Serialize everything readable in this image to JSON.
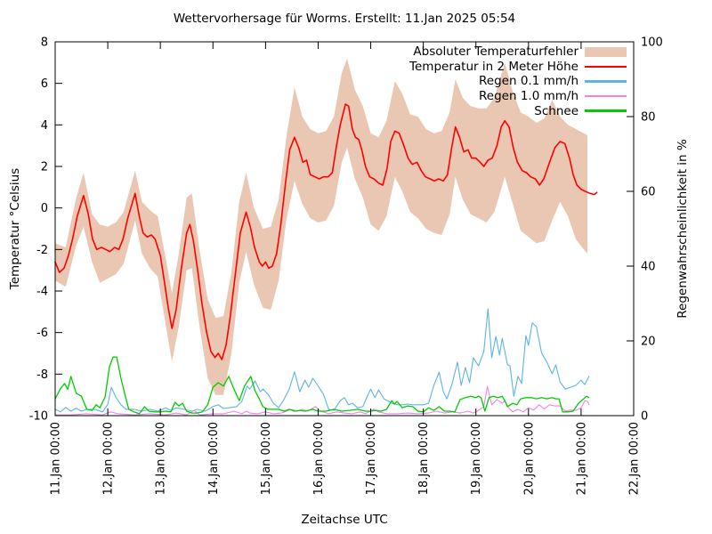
{
  "title": "Wettervorhersage für Worms. Erstellt: 11.Jan 2025 05:54",
  "axes": {
    "x_label": "Zeitachse UTC",
    "y_left_label": "Temperatur °Celsius",
    "y_right_label": "Regenwahrscheinlichkeit in %",
    "x_tick_labels": [
      "11.Jan 00:00",
      "12.Jan 00:00",
      "13.Jan 00:00",
      "14.Jan 00:00",
      "15.Jan 00:00",
      "16.Jan 00:00",
      "17.Jan 00:00",
      "18.Jan 00:00",
      "19.Jan 00:00",
      "20.Jan 00:00",
      "21.Jan 00:00",
      "22.Jan 00:00"
    ],
    "y_left_ticks": [
      -10,
      -8,
      -6,
      -4,
      -2,
      0,
      2,
      4,
      6,
      8
    ],
    "y_right_ticks": [
      0,
      20,
      40,
      60,
      80,
      100
    ]
  },
  "legend": {
    "items": [
      {
        "label": "Absoluter Temperaturfehler",
        "swatch": "band",
        "color": "#eac7b2"
      },
      {
        "label": "Temperatur in 2 Meter Höhe",
        "swatch": "line",
        "color": "#ff0000"
      },
      {
        "label": "Regen 0.1 mm/h",
        "swatch": "line",
        "color": "#5eb3e8"
      },
      {
        "label": "Regen 1.0 mm/h",
        "swatch": "line",
        "color": "#ee82ee"
      },
      {
        "label": "Schnee",
        "swatch": "line",
        "color": "#00cc00"
      }
    ]
  },
  "chart_data": {
    "type": "line",
    "title": "Wettervorhersage für Worms. Erstellt: 11.Jan 2025 05:54",
    "xlabel": "Zeitachse UTC",
    "x_unit": "days since 11.Jan 2025 00:00 UTC",
    "x_range": [
      0,
      11
    ],
    "y_left": {
      "label": "Temperatur °Celsius",
      "range": [
        -10,
        8
      ]
    },
    "y_right": {
      "label": "Regenwahrscheinlichkeit in %",
      "range": [
        0,
        100
      ]
    },
    "grid": false,
    "legend_position": "top-right",
    "series": [
      {
        "name": "Absoluter Temperaturfehler",
        "type": "band",
        "axis": "left",
        "color": "#eac7b2",
        "x": [
          0,
          0.2,
          0.4,
          0.54,
          0.7,
          0.85,
          1.0,
          1.15,
          1.3,
          1.52,
          1.65,
          1.8,
          1.95,
          2.1,
          2.22,
          2.35,
          2.5,
          2.6,
          2.75,
          2.9,
          3.05,
          3.2,
          3.35,
          3.5,
          3.63,
          3.78,
          3.95,
          4.1,
          4.25,
          4.4,
          4.55,
          4.7,
          4.85,
          5.0,
          5.15,
          5.3,
          5.45,
          5.55,
          5.7,
          5.85,
          6.0,
          6.15,
          6.3,
          6.46,
          6.6,
          6.75,
          6.9,
          7.05,
          7.2,
          7.35,
          7.5,
          7.61,
          7.75,
          7.9,
          8.05,
          8.2,
          8.35,
          8.55,
          8.7,
          8.85,
          9.0,
          9.15,
          9.3,
          9.45,
          9.6,
          9.75,
          9.9,
          10.05,
          10.12
        ],
        "top": [
          -1.7,
          -1.9,
          0.5,
          1.7,
          -0.3,
          -0.8,
          -0.9,
          -0.7,
          -0.2,
          1.8,
          0.3,
          -0.1,
          -0.4,
          -2.4,
          -4.1,
          -2.2,
          0.5,
          0.7,
          -2.1,
          -4.4,
          -5.3,
          -5.2,
          -3.1,
          0.3,
          1.7,
          0.0,
          -1.0,
          -0.9,
          0.4,
          3.5,
          5.8,
          4.4,
          3.8,
          3.6,
          3.7,
          4.4,
          6.5,
          7.2,
          5.7,
          4.9,
          3.6,
          3.4,
          4.2,
          6.1,
          5.5,
          4.5,
          4.4,
          3.8,
          3.6,
          3.7,
          4.6,
          6.2,
          5.3,
          4.9,
          4.8,
          4.8,
          5.3,
          7.0,
          5.6,
          4.6,
          4.4,
          4.1,
          4.3,
          5.2,
          4.4,
          4.0,
          3.8,
          3.6,
          3.5
        ],
        "bot": [
          -3.5,
          -3.8,
          -1.8,
          -0.9,
          -2.6,
          -3.6,
          -3.4,
          -3.2,
          -2.7,
          -0.6,
          -2.2,
          -2.9,
          -3.3,
          -5.6,
          -7.4,
          -5.7,
          -3.0,
          -2.9,
          -5.8,
          -8.2,
          -9.0,
          -9.0,
          -7.0,
          -3.6,
          -2.1,
          -3.7,
          -4.8,
          -4.9,
          -3.5,
          -0.5,
          1.3,
          0.2,
          -0.5,
          -0.7,
          -0.6,
          0.1,
          2.2,
          2.9,
          1.4,
          0.5,
          -0.8,
          -1.1,
          -0.4,
          1.5,
          0.8,
          -0.2,
          -0.5,
          -1.0,
          -1.2,
          -1.3,
          -0.3,
          1.5,
          0.4,
          -0.3,
          -0.5,
          -0.7,
          -0.2,
          1.5,
          0.2,
          -1.1,
          -1.4,
          -1.7,
          -1.6,
          -0.6,
          0.3,
          -0.4,
          -1.5,
          -2.0,
          -2.2
        ]
      },
      {
        "name": "Temperatur in 2 Meter Höhe",
        "type": "line",
        "axis": "left",
        "color": "#ff0000",
        "width": 1.6,
        "x": [
          0,
          0.08,
          0.17,
          0.25,
          0.33,
          0.42,
          0.54,
          0.63,
          0.71,
          0.79,
          0.88,
          0.96,
          1.04,
          1.13,
          1.21,
          1.29,
          1.38,
          1.52,
          1.6,
          1.67,
          1.75,
          1.83,
          1.9,
          2.0,
          2.08,
          2.15,
          2.22,
          2.3,
          2.4,
          2.5,
          2.56,
          2.63,
          2.71,
          2.79,
          2.88,
          2.96,
          3.04,
          3.1,
          3.17,
          3.25,
          3.33,
          3.42,
          3.52,
          3.63,
          3.71,
          3.79,
          3.88,
          3.94,
          4.0,
          4.06,
          4.13,
          4.21,
          4.29,
          4.38,
          4.46,
          4.55,
          4.63,
          4.71,
          4.78,
          4.85,
          4.94,
          5.02,
          5.1,
          5.19,
          5.27,
          5.35,
          5.42,
          5.52,
          5.58,
          5.65,
          5.71,
          5.77,
          5.83,
          5.9,
          5.98,
          6.06,
          6.15,
          6.23,
          6.31,
          6.38,
          6.46,
          6.54,
          6.63,
          6.71,
          6.79,
          6.88,
          6.96,
          7.04,
          7.13,
          7.21,
          7.29,
          7.38,
          7.46,
          7.54,
          7.61,
          7.69,
          7.77,
          7.85,
          7.92,
          8.0,
          8.08,
          8.15,
          8.23,
          8.31,
          8.4,
          8.48,
          8.55,
          8.63,
          8.71,
          8.79,
          8.88,
          8.96,
          9.04,
          9.13,
          9.21,
          9.29,
          9.4,
          9.5,
          9.6,
          9.69,
          9.78,
          9.85,
          9.92,
          10.0,
          10.08,
          10.17,
          10.25,
          10.3
        ],
        "y": [
          -2.6,
          -3.1,
          -2.9,
          -2.3,
          -1.5,
          -0.4,
          0.6,
          -0.3,
          -1.5,
          -2.0,
          -1.9,
          -2.0,
          -2.1,
          -1.9,
          -2.0,
          -1.5,
          -0.5,
          0.7,
          -0.4,
          -1.2,
          -1.4,
          -1.3,
          -1.5,
          -2.3,
          -3.6,
          -4.8,
          -5.8,
          -4.9,
          -2.9,
          -1.2,
          -0.8,
          -1.6,
          -3.0,
          -4.6,
          -6.0,
          -6.9,
          -7.2,
          -7.0,
          -7.3,
          -6.6,
          -5.2,
          -3.3,
          -1.2,
          -0.2,
          -0.9,
          -1.9,
          -2.6,
          -2.8,
          -2.6,
          -2.9,
          -2.8,
          -2.2,
          -0.8,
          1.2,
          2.8,
          3.4,
          2.9,
          2.2,
          2.3,
          1.6,
          1.5,
          1.4,
          1.5,
          1.5,
          1.7,
          3.0,
          4.0,
          5.0,
          4.9,
          3.8,
          3.4,
          3.3,
          2.8,
          2.0,
          1.5,
          1.4,
          1.2,
          1.1,
          1.9,
          3.2,
          3.7,
          3.6,
          3.0,
          2.4,
          2.1,
          2.2,
          1.8,
          1.5,
          1.4,
          1.3,
          1.4,
          1.3,
          1.6,
          2.9,
          3.9,
          3.4,
          2.7,
          2.8,
          2.4,
          2.4,
          2.2,
          2.0,
          2.3,
          2.4,
          3.0,
          3.9,
          4.2,
          3.9,
          2.9,
          2.2,
          1.8,
          1.7,
          1.5,
          1.4,
          1.1,
          1.4,
          2.2,
          2.9,
          3.2,
          3.1,
          2.4,
          1.6,
          1.1,
          0.9,
          0.8,
          0.7,
          0.65,
          0.75
        ]
      },
      {
        "name": "Regen 0.1 mm/h",
        "type": "line",
        "axis": "right",
        "color": "#5eb3e8",
        "width": 1.1,
        "x": [
          0,
          0.1,
          0.2,
          0.3,
          0.4,
          0.5,
          0.6,
          0.75,
          0.9,
          1.0,
          1.07,
          1.15,
          1.25,
          1.35,
          1.5,
          1.65,
          1.8,
          1.95,
          2.1,
          2.2,
          2.3,
          2.45,
          2.6,
          2.7,
          2.85,
          3.0,
          3.1,
          3.2,
          3.3,
          3.45,
          3.55,
          3.65,
          3.7,
          3.8,
          3.9,
          3.95,
          4.05,
          4.15,
          4.25,
          4.35,
          4.45,
          4.55,
          4.65,
          4.75,
          4.82,
          4.9,
          5.0,
          5.1,
          5.2,
          5.3,
          5.42,
          5.5,
          5.58,
          5.65,
          5.75,
          5.85,
          5.95,
          6.0,
          6.08,
          6.15,
          6.25,
          6.32,
          6.4,
          6.5,
          6.6,
          6.7,
          6.8,
          6.9,
          7.0,
          7.1,
          7.2,
          7.3,
          7.38,
          7.45,
          7.55,
          7.65,
          7.72,
          7.8,
          7.88,
          7.95,
          8.05,
          8.15,
          8.23,
          8.3,
          8.38,
          8.45,
          8.5,
          8.6,
          8.65,
          8.72,
          8.8,
          8.87,
          8.95,
          9.0,
          9.07,
          9.15,
          9.25,
          9.35,
          9.45,
          9.52,
          9.6,
          9.7,
          9.8,
          9.9,
          10.0,
          10.07,
          10.15
        ],
        "y": [
          1.7,
          1.0,
          2.2,
          1.2,
          2.0,
          1.2,
          1.7,
          1.7,
          1.0,
          3.0,
          7.6,
          5.0,
          2.9,
          1.7,
          1.7,
          1.2,
          1.7,
          1.2,
          2.1,
          1.4,
          2.1,
          1.7,
          1.2,
          1.7,
          1.2,
          2.4,
          2.9,
          1.9,
          2.1,
          2.4,
          3.8,
          7.9,
          7.1,
          9.3,
          6.4,
          7.1,
          5.7,
          3.3,
          2.1,
          4.3,
          7.1,
          11.7,
          6.4,
          9.5,
          7.6,
          10.0,
          7.9,
          5.7,
          1.7,
          1.4,
          4.0,
          4.8,
          2.9,
          3.3,
          2.1,
          2.4,
          5.7,
          7.1,
          4.8,
          6.9,
          4.5,
          4.0,
          3.3,
          2.9,
          2.9,
          3.1,
          2.9,
          2.9,
          2.9,
          3.3,
          8.1,
          11.6,
          6.4,
          4.5,
          8.6,
          14.3,
          8.1,
          12.9,
          8.8,
          15.5,
          13.3,
          17.1,
          28.6,
          15.5,
          21.2,
          16.2,
          20.7,
          13.6,
          13.3,
          5.2,
          10.5,
          8.6,
          21.4,
          18.8,
          24.8,
          23.8,
          16.7,
          14.3,
          11.2,
          13.6,
          9.0,
          7.1,
          7.6,
          8.1,
          9.5,
          8.3,
          10.5
        ]
      },
      {
        "name": "Regen 1.0 mm/h",
        "type": "line",
        "axis": "right",
        "color": "#ee82ee",
        "width": 1.1,
        "x": [
          0,
          0.3,
          0.6,
          0.9,
          1.05,
          1.2,
          1.5,
          1.8,
          2.1,
          2.3,
          2.5,
          2.64,
          2.75,
          3.0,
          3.2,
          3.4,
          3.55,
          3.64,
          3.7,
          3.85,
          4.0,
          4.15,
          4.3,
          4.5,
          4.6,
          4.7,
          4.8,
          4.95,
          5.05,
          5.2,
          5.35,
          5.5,
          5.65,
          5.8,
          5.9,
          6.05,
          6.15,
          6.3,
          6.5,
          6.7,
          6.9,
          7.1,
          7.25,
          7.4,
          7.55,
          7.7,
          7.85,
          7.95,
          8.05,
          8.15,
          8.22,
          8.3,
          8.4,
          8.5,
          8.55,
          8.62,
          8.7,
          8.8,
          8.9,
          9.0,
          9.1,
          9.2,
          9.3,
          9.4,
          9.5,
          9.6,
          9.7,
          9.8,
          9.9,
          10.0,
          10.07,
          10.12,
          10.15
        ],
        "y": [
          0.2,
          0.2,
          0.5,
          0.2,
          1.0,
          0.5,
          0.2,
          0.5,
          0.2,
          0.7,
          0.2,
          1.4,
          0.2,
          0.5,
          0.5,
          1.2,
          0.5,
          1.2,
          0.7,
          0.5,
          1.0,
          0.5,
          0.7,
          1.7,
          1.2,
          1.7,
          1.2,
          2.4,
          1.2,
          0.5,
          1.0,
          0.7,
          0.5,
          1.0,
          0.5,
          1.7,
          1.0,
          0.5,
          0.5,
          0.7,
          0.5,
          0.7,
          1.2,
          0.7,
          1.0,
          0.7,
          1.2,
          0.7,
          1.4,
          2.4,
          7.8,
          2.9,
          4.3,
          3.3,
          4.0,
          2.1,
          1.0,
          1.7,
          1.0,
          2.1,
          1.5,
          2.9,
          1.8,
          2.9,
          2.6,
          2.6,
          1.2,
          1.5,
          1.4,
          2.1,
          4.0,
          3.8,
          2.9
        ]
      },
      {
        "name": "Schnee",
        "type": "line",
        "axis": "right",
        "color": "#00cc00",
        "width": 1.3,
        "x": [
          0,
          0.1,
          0.18,
          0.24,
          0.3,
          0.4,
          0.5,
          0.6,
          0.7,
          0.78,
          0.85,
          0.95,
          1.03,
          1.1,
          1.17,
          1.25,
          1.32,
          1.4,
          1.5,
          1.6,
          1.7,
          1.78,
          1.9,
          2.0,
          2.1,
          2.2,
          2.28,
          2.35,
          2.42,
          2.5,
          2.6,
          2.7,
          2.8,
          2.9,
          3.0,
          3.1,
          3.2,
          3.3,
          3.4,
          3.5,
          3.6,
          3.72,
          3.8,
          3.88,
          3.95,
          4.05,
          4.15,
          4.25,
          4.35,
          4.45,
          4.55,
          4.65,
          4.75,
          4.9,
          5.0,
          5.15,
          5.3,
          5.45,
          5.6,
          5.75,
          5.9,
          6.0,
          6.1,
          6.2,
          6.3,
          6.4,
          6.45,
          6.5,
          6.6,
          6.7,
          6.8,
          6.9,
          7.0,
          7.1,
          7.2,
          7.3,
          7.4,
          7.5,
          7.6,
          7.7,
          7.8,
          7.9,
          8.0,
          8.05,
          8.1,
          8.17,
          8.25,
          8.33,
          8.42,
          8.5,
          8.55,
          8.6,
          8.7,
          8.78,
          8.85,
          8.95,
          9.05,
          9.15,
          9.25,
          9.35,
          9.45,
          9.52,
          9.58,
          9.65,
          9.75,
          9.85,
          9.95,
          10.05,
          10.1,
          10.15
        ],
        "y": [
          4.5,
          7.2,
          8.6,
          7.0,
          10.5,
          6.0,
          5.2,
          1.7,
          1.4,
          2.9,
          2.1,
          5.0,
          13.0,
          15.7,
          15.7,
          10.0,
          6.0,
          1.7,
          1.0,
          0.5,
          2.4,
          1.2,
          1.0,
          1.0,
          1.2,
          1.0,
          3.6,
          2.6,
          3.3,
          1.2,
          0.7,
          0.7,
          1.0,
          2.9,
          7.6,
          8.8,
          7.9,
          10.5,
          7.1,
          4.0,
          7.9,
          10.5,
          6.7,
          4.5,
          2.4,
          1.7,
          1.7,
          1.7,
          1.2,
          1.7,
          1.2,
          1.4,
          1.2,
          1.7,
          1.2,
          1.2,
          1.7,
          1.2,
          1.4,
          1.7,
          1.2,
          1.2,
          1.4,
          1.2,
          1.7,
          4.0,
          3.1,
          3.8,
          2.1,
          2.6,
          2.4,
          1.2,
          1.0,
          2.1,
          1.4,
          2.4,
          1.2,
          1.2,
          1.0,
          4.3,
          4.8,
          5.2,
          4.8,
          5.2,
          4.8,
          1.2,
          4.8,
          5.2,
          4.8,
          5.2,
          4.0,
          2.4,
          3.3,
          2.9,
          4.5,
          4.8,
          4.8,
          4.5,
          4.8,
          4.5,
          4.8,
          4.5,
          4.5,
          1.0,
          1.0,
          1.2,
          3.3,
          4.5,
          5.2,
          4.8
        ]
      }
    ]
  }
}
